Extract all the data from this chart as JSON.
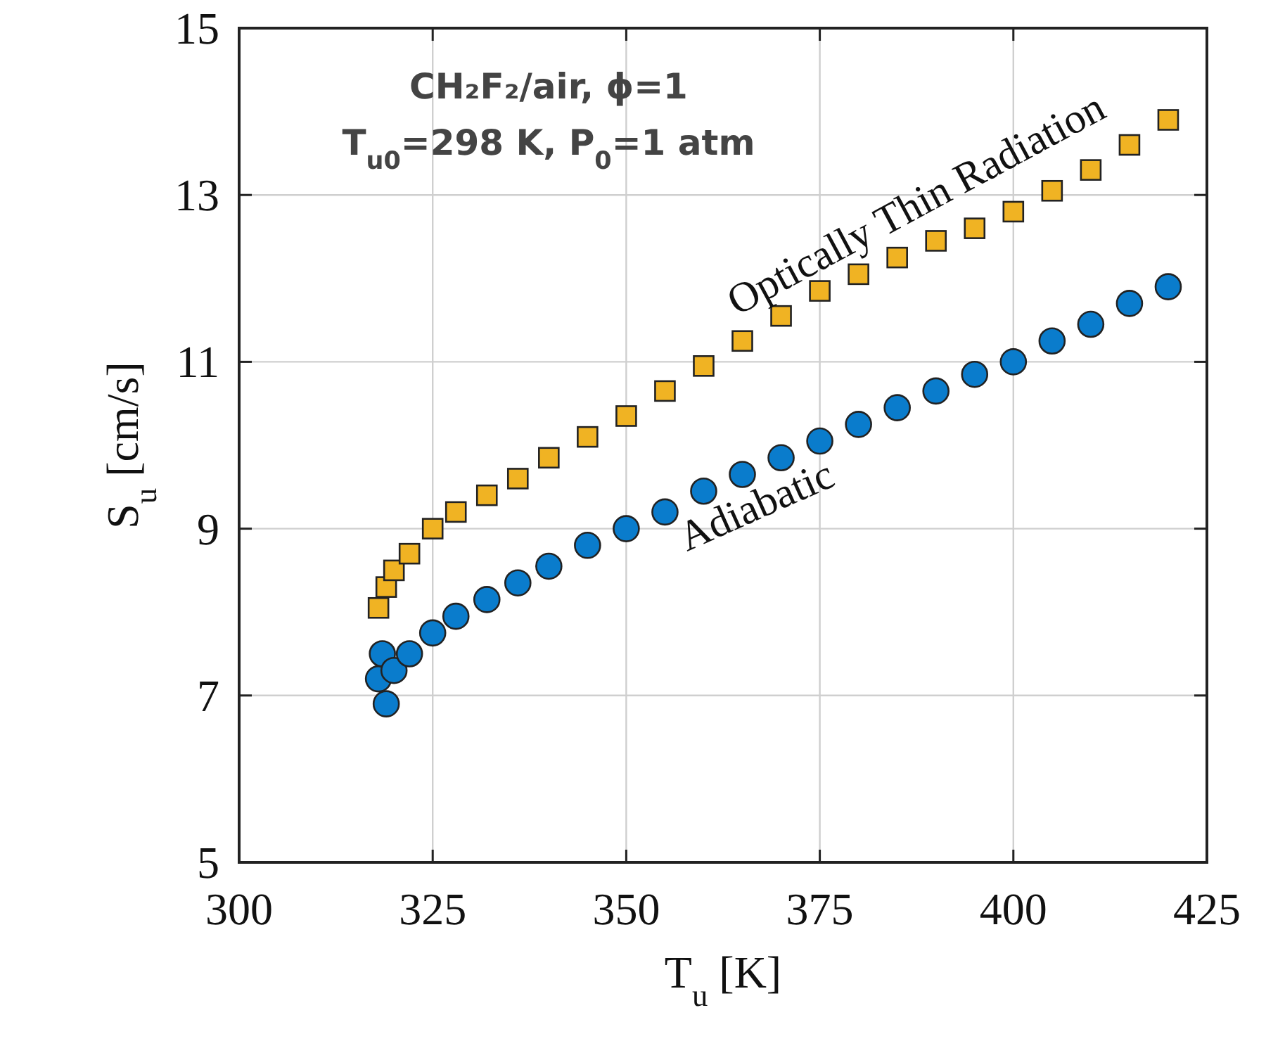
{
  "chart_data": {
    "type": "scatter",
    "xlabel": "T$_{u}$ [K]",
    "ylabel": "S$_{u}$ [cm/s]",
    "xlim": [
      300,
      425
    ],
    "xticks": [
      300,
      325,
      350,
      375,
      400,
      425
    ],
    "ylim": [
      5,
      15
    ],
    "yticks": [
      5,
      7,
      9,
      11,
      13,
      15
    ],
    "grid": true,
    "annotations": [
      "CH₂F₂/air, ϕ=1",
      "T$_{u0}$=298 K, P$_{0}$=1 atm"
    ],
    "series": [
      {
        "name": "Optically Thin Radiation",
        "color": "#f0b323",
        "marker": "square",
        "x": [
          318,
          319,
          320,
          322,
          325,
          328,
          332,
          336,
          340,
          345,
          350,
          355,
          360,
          365,
          370,
          375,
          380,
          385,
          390,
          395,
          400,
          405,
          410,
          415,
          420
        ],
        "values": [
          8.05,
          8.3,
          8.5,
          8.7,
          9.0,
          9.2,
          9.4,
          9.6,
          9.85,
          10.1,
          10.35,
          10.65,
          10.95,
          11.25,
          11.55,
          11.85,
          12.05,
          12.25,
          12.45,
          12.6,
          12.8,
          13.05,
          13.3,
          13.6,
          13.9
        ]
      },
      {
        "name": "Adiabatic",
        "color": "#0a7ccc",
        "marker": "circle",
        "x": [
          318,
          318.5,
          319,
          320,
          322,
          325,
          328,
          332,
          336,
          340,
          345,
          350,
          355,
          360,
          365,
          370,
          375,
          380,
          385,
          390,
          395,
          400,
          405,
          410,
          415,
          420
        ],
        "values": [
          7.2,
          7.5,
          6.9,
          7.3,
          7.5,
          7.75,
          7.95,
          8.15,
          8.35,
          8.55,
          8.8,
          9.0,
          9.2,
          9.45,
          9.65,
          9.85,
          10.05,
          10.25,
          10.45,
          10.65,
          10.85,
          11.0,
          11.25,
          11.45,
          11.7,
          11.9
        ]
      }
    ]
  }
}
